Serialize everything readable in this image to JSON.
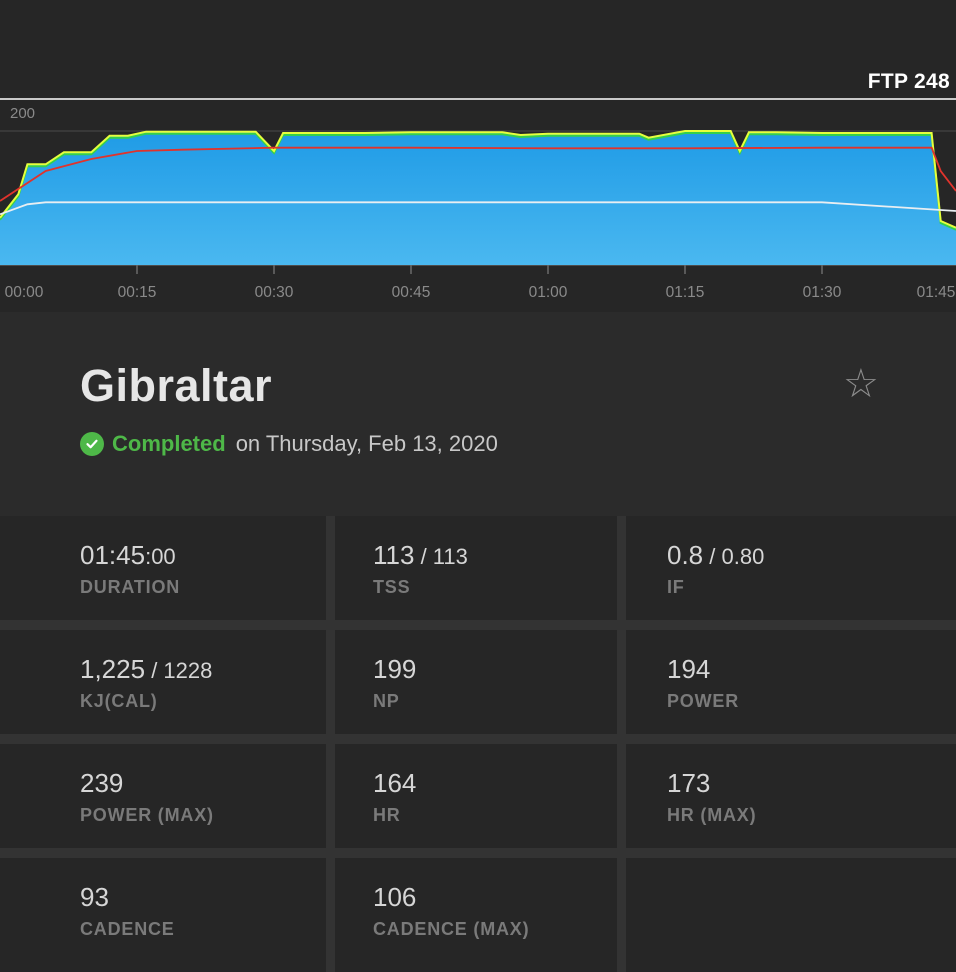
{
  "chart": {
    "ftp_label": "FTP 248",
    "y_tick": "200",
    "x_ticks": [
      "00:00",
      "00:15",
      "00:30",
      "00:45",
      "01:00",
      "01:15",
      "01:30",
      "01:45"
    ],
    "colors": {
      "power_fill_top": "#1f9be6",
      "power_fill_bottom": "#4ab8f0",
      "power_line": "#e6ff3c",
      "target_line": "#34d04a",
      "heart_rate_line": "#e0332c",
      "cadence_line": "#e8eef2",
      "ftp_line": "#ffffff"
    }
  },
  "chart_data": {
    "type": "area",
    "xlabel": "",
    "ylabel": "",
    "x_range": [
      "00:00",
      "01:45"
    ],
    "ylim": [
      0,
      248
    ],
    "grid": true,
    "series": [
      {
        "style": "area",
        "x": [
          "00:00",
          "00:02",
          "00:03",
          "00:05",
          "00:07",
          "00:10",
          "00:12",
          "00:14",
          "00:16",
          "00:28",
          "00:30",
          "00:31",
          "00:40",
          "00:45",
          "00:55",
          "00:57",
          "01:00",
          "01:10",
          "01:11",
          "01:15",
          "01:20",
          "01:21",
          "01:22",
          "01:25",
          "01:30",
          "01:40",
          "01:42",
          "01:43",
          "01:45"
        ],
        "values": [
          70,
          105,
          150,
          150,
          168,
          168,
          193,
          193,
          199,
          199,
          170,
          197,
          197,
          198,
          198,
          194,
          196,
          196,
          190,
          200,
          200,
          170,
          198,
          198,
          197,
          197,
          197,
          65,
          55
        ]
      },
      {
        "style": "line",
        "x": [
          "00:00",
          "00:05",
          "00:10",
          "00:15",
          "00:20",
          "00:30",
          "00:45",
          "01:00",
          "01:15",
          "01:30",
          "01:42",
          "01:43",
          "01:45"
        ],
        "values": [
          95,
          140,
          158,
          170,
          172,
          175,
          175,
          174,
          174,
          175,
          175,
          140,
          110
        ]
      },
      {
        "style": "line",
        "x": [
          "00:00",
          "00:03",
          "00:05",
          "00:15",
          "00:30",
          "00:45",
          "01:00",
          "01:15",
          "01:30",
          "01:45"
        ],
        "values": [
          75,
          90,
          93,
          93,
          93,
          93,
          93,
          93,
          93,
          80
        ]
      }
    ],
    "reference_lines": [
      {
        "label": "FTP 248",
        "value": 248
      }
    ]
  },
  "workout": {
    "title": "Gibraltar",
    "status": "Completed",
    "date_text": "on Thursday, Feb 13, 2020"
  },
  "stats": [
    {
      "value": "01:45",
      "sub": ":00",
      "label": "DURATION"
    },
    {
      "value": "113",
      "sub": " / 113",
      "label": "TSS"
    },
    {
      "value": "0.8",
      "sub": " / 0.80",
      "label": "IF"
    },
    {
      "value": "1,225",
      "sub": " / 1228",
      "label": "KJ(CAL)"
    },
    {
      "value": "199",
      "sub": "",
      "label": "NP"
    },
    {
      "value": "194",
      "sub": "",
      "label": "POWER"
    },
    {
      "value": "239",
      "sub": "",
      "label": "POWER (MAX)"
    },
    {
      "value": "164",
      "sub": "",
      "label": "HR"
    },
    {
      "value": "173",
      "sub": "",
      "label": "HR (MAX)"
    },
    {
      "value": "93",
      "sub": "",
      "label": "CADENCE"
    },
    {
      "value": "106",
      "sub": "",
      "label": "CADENCE (MAX)"
    },
    {
      "value": "",
      "sub": "",
      "label": ""
    }
  ]
}
